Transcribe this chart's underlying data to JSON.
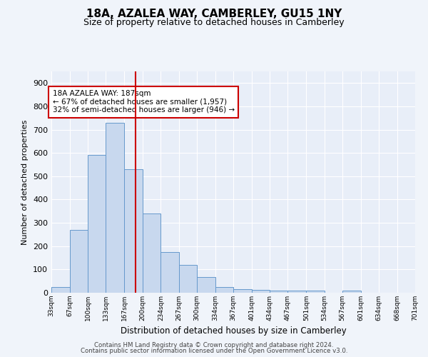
{
  "title": "18A, AZALEA WAY, CAMBERLEY, GU15 1NY",
  "subtitle": "Size of property relative to detached houses in Camberley",
  "xlabel": "Distribution of detached houses by size in Camberley",
  "ylabel": "Number of detached properties",
  "bar_color": "#c8d8ee",
  "bar_edge_color": "#6699cc",
  "bg_color": "#e8eef8",
  "grid_color": "#ffffff",
  "vline_x": 187,
  "vline_color": "#cc0000",
  "annotation_text": "18A AZALEA WAY: 187sqm\n← 67% of detached houses are smaller (1,957)\n32% of semi-detached houses are larger (946) →",
  "annotation_box_color": "#ffffff",
  "annotation_box_edge": "#cc0000",
  "bins": [
    33,
    67,
    100,
    133,
    167,
    200,
    234,
    267,
    300,
    334,
    367,
    401,
    434,
    467,
    501,
    534,
    567,
    601,
    634,
    668,
    701
  ],
  "bin_labels": [
    "33sqm",
    "67sqm",
    "100sqm",
    "133sqm",
    "167sqm",
    "200sqm",
    "234sqm",
    "267sqm",
    "300sqm",
    "334sqm",
    "367sqm",
    "401sqm",
    "434sqm",
    "467sqm",
    "501sqm",
    "534sqm",
    "567sqm",
    "601sqm",
    "634sqm",
    "668sqm",
    "701sqm"
  ],
  "counts": [
    25,
    270,
    590,
    730,
    530,
    340,
    175,
    120,
    67,
    25,
    15,
    13,
    10,
    10,
    10,
    0,
    8,
    0,
    0,
    0
  ],
  "ylim": [
    0,
    950
  ],
  "yticks": [
    0,
    100,
    200,
    300,
    400,
    500,
    600,
    700,
    800,
    900
  ],
  "footer1": "Contains HM Land Registry data © Crown copyright and database right 2024.",
  "footer2": "Contains public sector information licensed under the Open Government Licence v3.0."
}
